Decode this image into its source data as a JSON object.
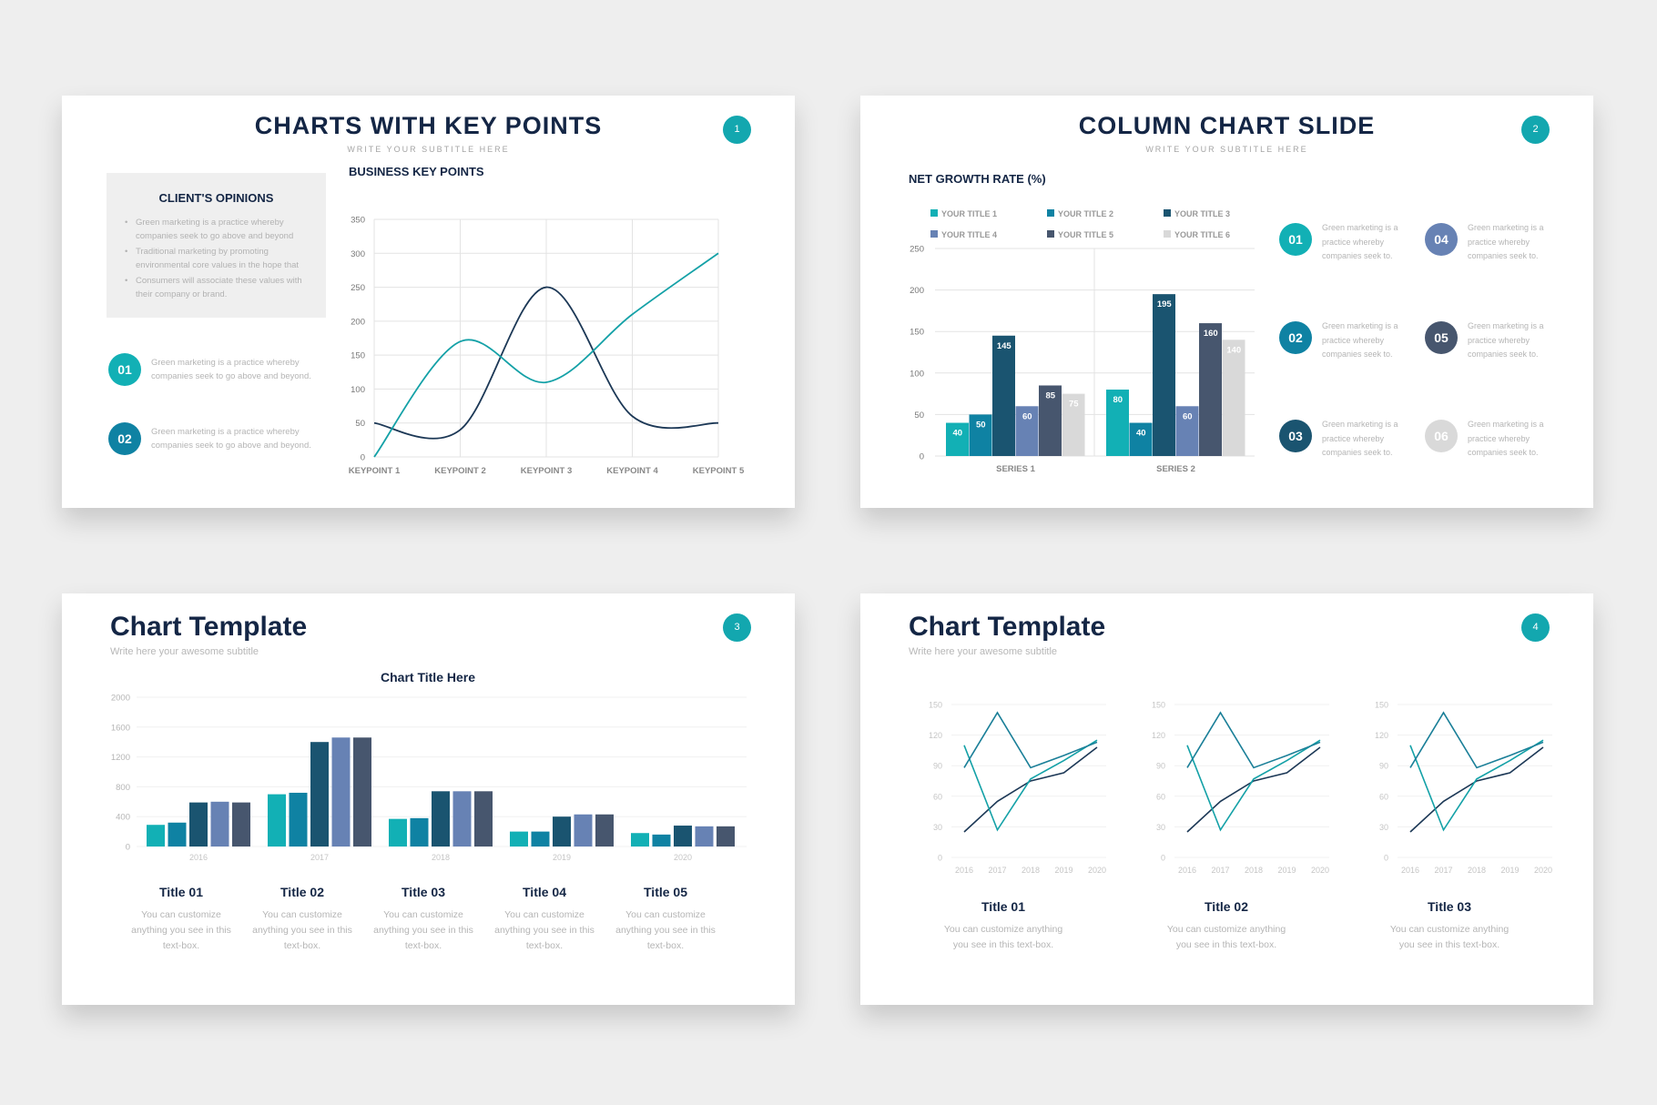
{
  "colors": {
    "teal": "#12b0b5",
    "mid_teal": "#0f82a3",
    "dark_teal": "#1a5470",
    "slate_blue": "#6782b4",
    "slate": "#47566e",
    "light_gray": "#d9d9d9",
    "navy": "#142645",
    "dark_line": "#1c3856",
    "teal_line": "#14a1a7"
  },
  "slide1": {
    "title": "CHARTS WITH KEY POINTS",
    "subtitle": "WRITE YOUR SUBTITLE HERE",
    "number": "1",
    "opinions_heading": "CLIENT'S OPINIONS",
    "opinions": [
      "Green marketing is a practice whereby companies seek to go above and beyond",
      "Traditional marketing by promoting environmental core values in the hope that",
      "Consumers will associate these values with their company or brand."
    ],
    "points": [
      {
        "num": "01",
        "text": "Green marketing is a practice whereby companies seek to go above and beyond."
      },
      {
        "num": "02",
        "text": "Green marketing is a practice whereby companies seek to go above and beyond."
      }
    ]
  },
  "slide2": {
    "title": "COLUMN CHART SLIDE",
    "subtitle": "WRITE YOUR SUBTITLE HERE",
    "number": "2",
    "items": [
      {
        "num": "01",
        "color": "#12b0b5",
        "text": "Green marketing is a practice whereby companies seek to."
      },
      {
        "num": "04",
        "color": "#6782b4",
        "text": "Green marketing is a practice whereby companies seek to."
      },
      {
        "num": "02",
        "color": "#0f82a3",
        "text": "Green marketing is a practice whereby companies seek to."
      },
      {
        "num": "05",
        "color": "#47566e",
        "text": "Green marketing is a practice whereby companies seek to."
      },
      {
        "num": "03",
        "color": "#1a5470",
        "text": "Green marketing is a practice whereby companies seek to."
      },
      {
        "num": "06",
        "color": "#d9d9d9",
        "text": "Green marketing is a practice whereby companies seek to."
      }
    ]
  },
  "slide3": {
    "title": "Chart Template",
    "subtitle": "Write here your awesome subtitle",
    "number": "3",
    "cards": [
      {
        "title": "Title 01",
        "desc": "You can customize anything you see in this text-box."
      },
      {
        "title": "Title 02",
        "desc": "You can customize anything you see in this text-box."
      },
      {
        "title": "Title 03",
        "desc": "You can customize anything you see in this text-box."
      },
      {
        "title": "Title 04",
        "desc": "You can customize anything you see in this text-box."
      },
      {
        "title": "Title 05",
        "desc": "You can customize anything you see in this text-box."
      }
    ]
  },
  "slide4": {
    "title": "Chart Template",
    "subtitle": "Write here your awesome subtitle",
    "number": "4",
    "cards": [
      {
        "title": "Title 01",
        "desc": "You can customize anything you see in this text-box."
      },
      {
        "title": "Title 02",
        "desc": "You can customize anything you see in this text-box."
      },
      {
        "title": "Title 03",
        "desc": "You can customize anything you see in this text-box."
      }
    ]
  },
  "chart_data": [
    {
      "id": "key-points",
      "type": "line",
      "title": "BUSINESS KEY POINTS",
      "categories": [
        "KEYPOINT 1",
        "KEYPOINT 2",
        "KEYPOINT 3",
        "KEYPOINT 4",
        "KEYPOINT 5"
      ],
      "series": [
        {
          "color": "#1c3856",
          "values": [
            50,
            40,
            250,
            60,
            50
          ]
        },
        {
          "color": "#14a1a7",
          "values": [
            0,
            170,
            110,
            210,
            300
          ]
        }
      ],
      "ylim": [
        0,
        350
      ],
      "yticks": [
        0,
        50,
        100,
        150,
        200,
        250,
        300,
        350
      ],
      "grid": true
    },
    {
      "id": "net-growth",
      "type": "bar",
      "title": "NET GROWTH RATE (%)",
      "categories": [
        "SERIES 1",
        "SERIES 2"
      ],
      "series": [
        {
          "name": "YOUR TITLE 1",
          "color": "#12b0b5",
          "values": [
            40,
            80
          ]
        },
        {
          "name": "YOUR TITLE 2",
          "color": "#0f82a3",
          "values": [
            50,
            40
          ]
        },
        {
          "name": "YOUR TITLE 3",
          "color": "#1a5470",
          "values": [
            145,
            195
          ]
        },
        {
          "name": "YOUR TITLE 4",
          "color": "#6782b4",
          "values": [
            60,
            60
          ]
        },
        {
          "name": "YOUR TITLE 5",
          "color": "#47566e",
          "values": [
            85,
            160
          ]
        },
        {
          "name": "YOUR TITLE 6",
          "color": "#d9d9d9",
          "values": [
            75,
            140
          ]
        }
      ],
      "ylim": [
        0,
        250
      ],
      "yticks": [
        0,
        50,
        100,
        150,
        200,
        250
      ],
      "legend": "top"
    },
    {
      "id": "chart-title-here",
      "type": "bar",
      "title": "Chart Title Here",
      "categories": [
        "2016",
        "2017",
        "2018",
        "2019",
        "2020"
      ],
      "series": [
        {
          "color": "#12b0b5",
          "values": [
            290,
            700,
            370,
            200,
            180
          ]
        },
        {
          "color": "#0f82a3",
          "values": [
            320,
            720,
            380,
            200,
            160
          ]
        },
        {
          "color": "#1a5470",
          "values": [
            590,
            1400,
            740,
            400,
            280
          ]
        },
        {
          "color": "#6782b4",
          "values": [
            600,
            1460,
            740,
            430,
            270
          ]
        },
        {
          "color": "#47566e",
          "values": [
            590,
            1460,
            740,
            430,
            270
          ]
        }
      ],
      "ylim": [
        0,
        2000
      ],
      "yticks": [
        0,
        400,
        800,
        1200,
        1600,
        2000
      ]
    },
    {
      "id": "line-1",
      "type": "line",
      "categories": [
        "2016",
        "2017",
        "2018",
        "2019",
        "2020"
      ],
      "series": [
        {
          "color": "#1c3856",
          "values": [
            25,
            55,
            75,
            83,
            108
          ]
        },
        {
          "color": "#14a1a7",
          "values": [
            110,
            27,
            77,
            95,
            115
          ]
        },
        {
          "color": "#1a7f98",
          "values": [
            88,
            142,
            88,
            100,
            113
          ]
        }
      ],
      "ylim": [
        0,
        150
      ],
      "yticks": [
        0,
        30,
        60,
        90,
        120,
        150
      ]
    },
    {
      "id": "line-2",
      "type": "line",
      "categories": [
        "2016",
        "2017",
        "2018",
        "2019",
        "2020"
      ],
      "series": [
        {
          "color": "#1c3856",
          "values": [
            25,
            55,
            75,
            83,
            108
          ]
        },
        {
          "color": "#14a1a7",
          "values": [
            110,
            27,
            77,
            95,
            115
          ]
        },
        {
          "color": "#1a7f98",
          "values": [
            88,
            142,
            88,
            100,
            113
          ]
        }
      ],
      "ylim": [
        0,
        150
      ],
      "yticks": [
        0,
        30,
        60,
        90,
        120,
        150
      ]
    },
    {
      "id": "line-3",
      "type": "line",
      "categories": [
        "2016",
        "2017",
        "2018",
        "2019",
        "2020"
      ],
      "series": [
        {
          "color": "#1c3856",
          "values": [
            25,
            55,
            75,
            83,
            108
          ]
        },
        {
          "color": "#14a1a7",
          "values": [
            110,
            27,
            77,
            95,
            115
          ]
        },
        {
          "color": "#1a7f98",
          "values": [
            88,
            142,
            88,
            100,
            113
          ]
        }
      ],
      "ylim": [
        0,
        150
      ],
      "yticks": [
        0,
        30,
        60,
        90,
        120,
        150
      ]
    }
  ]
}
